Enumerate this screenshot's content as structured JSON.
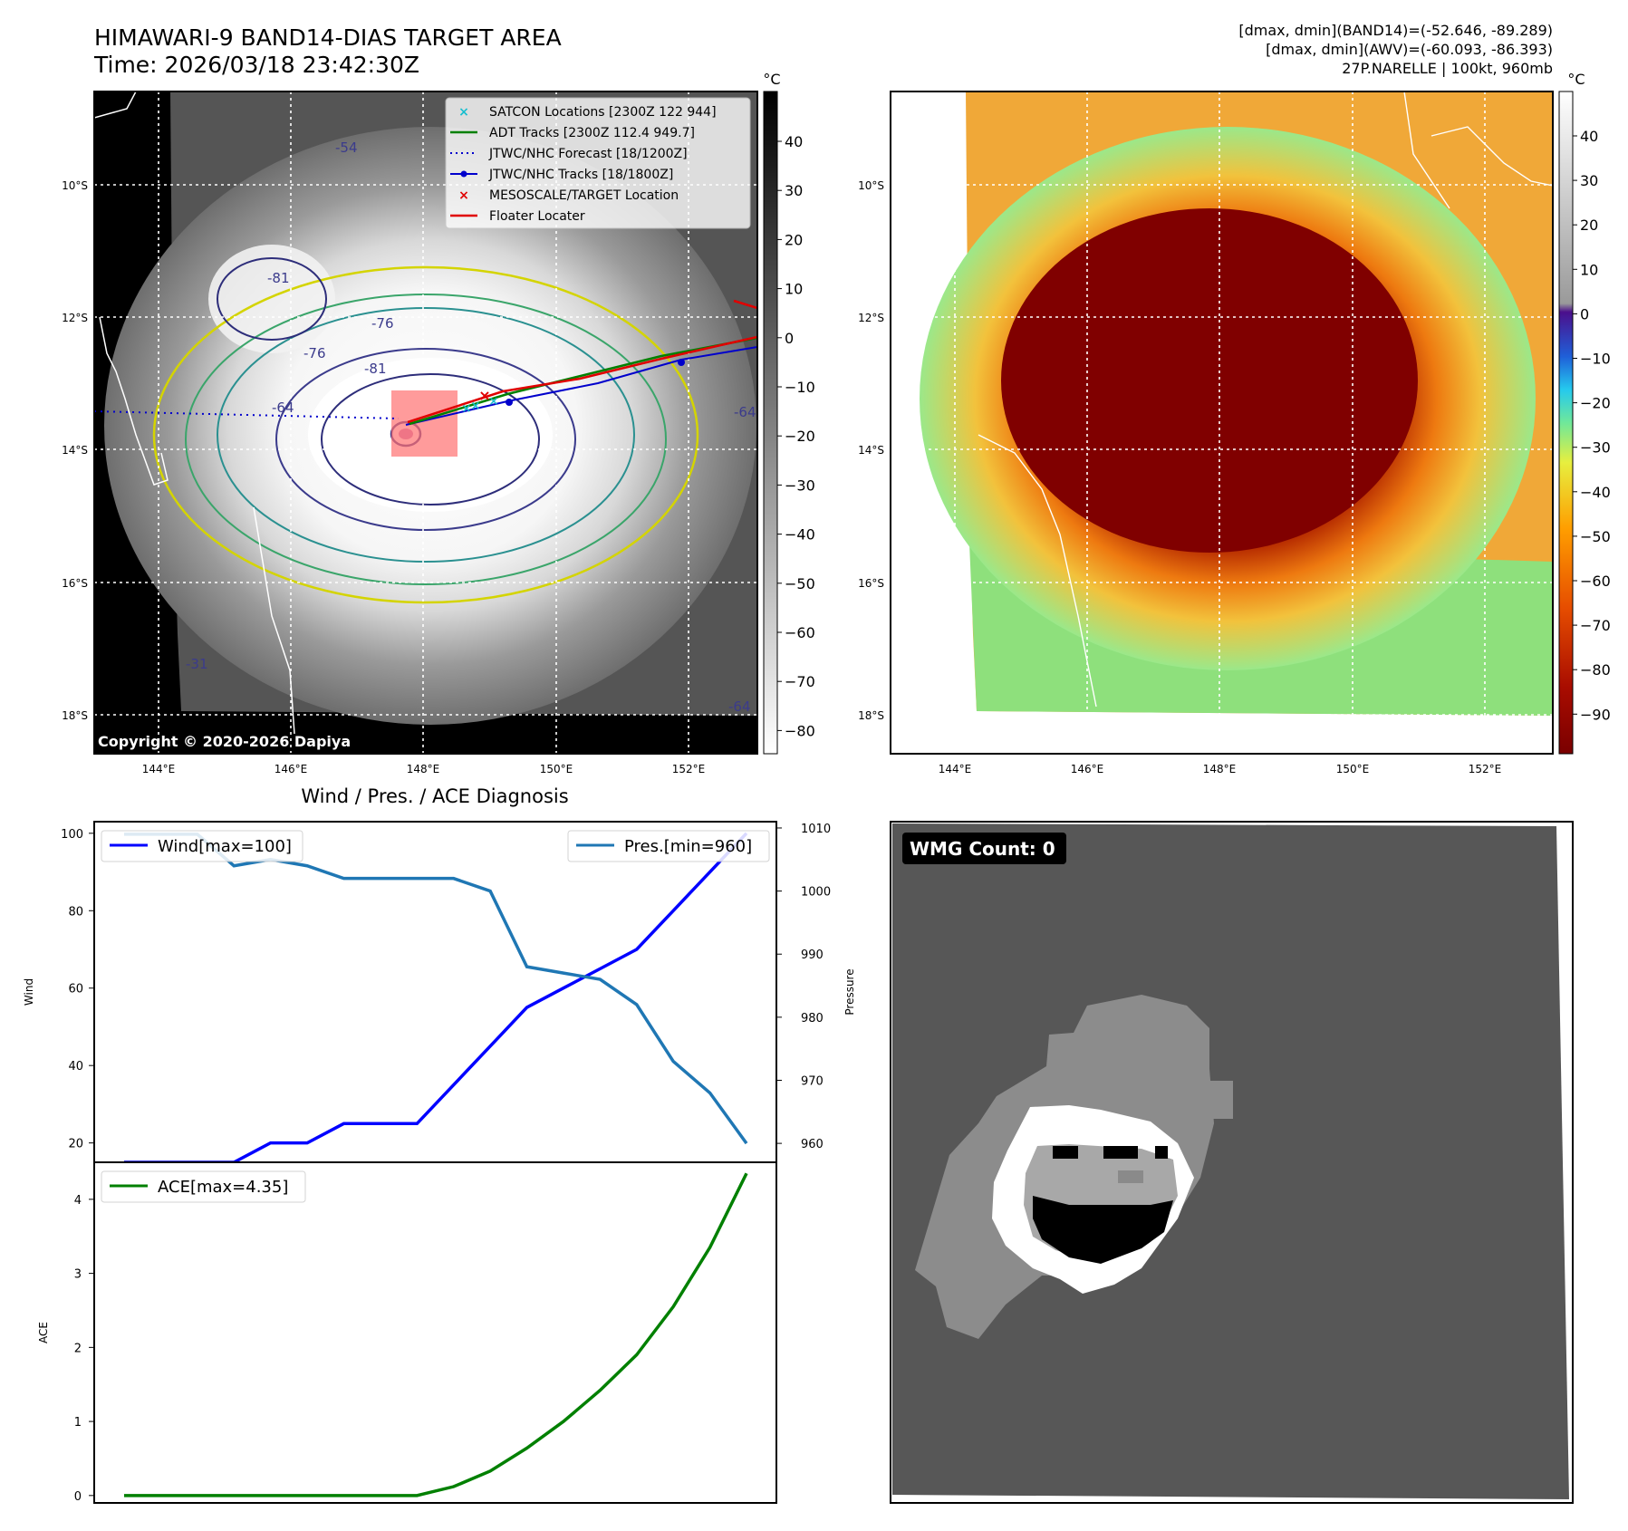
{
  "header": {
    "title_line1": "HIMAWARI-9 BAND14-DIAS TARGET AREA",
    "title_line2": "Time: 2026/03/18 23:42:30Z",
    "info_line1": "[dmax, dmin](BAND14)=(-52.646, -89.289)",
    "info_line2": "[dmax, dmin](AWV)=(-60.093, -86.393)",
    "info_line3": "27P.NARELLE | 100kt, 960mb"
  },
  "map_panel": {
    "lat_labels": [
      "10°S",
      "12°S",
      "14°S",
      "16°S",
      "18°S"
    ],
    "lon_labels": [
      "144°E",
      "146°E",
      "148°E",
      "150°E",
      "152°E"
    ],
    "copyright": "Copyright © 2020-2026 Dapiya",
    "contour_labels": [
      "-81",
      "-76",
      "-76",
      "-81",
      "-64",
      "-54",
      "-64",
      "-31",
      "-64"
    ],
    "legend": [
      {
        "label": "SATCON Locations [2300Z 122 944]",
        "color": "#17becf",
        "marker": "x"
      },
      {
        "label": "ADT Tracks [2300Z 112.4 949.7]",
        "color": "#008000",
        "marker": "line"
      },
      {
        "label": "JTWC/NHC Forecast [18/1200Z]",
        "color": "#0000cc",
        "marker": "dotted"
      },
      {
        "label": "JTWC/NHC Tracks [18/1800Z]",
        "color": "#0000cc",
        "marker": "line-dot"
      },
      {
        "label": "MESOSCALE/TARGET Location",
        "color": "#e00000",
        "marker": "x"
      },
      {
        "label": "Floater Locater",
        "color": "#e00000",
        "marker": "line"
      }
    ]
  },
  "colorbar_gray": {
    "unit": "°C",
    "ticks": [
      "40",
      "30",
      "20",
      "10",
      "0",
      "−10",
      "−20",
      "−30",
      "−40",
      "−50",
      "−60",
      "−70",
      "−80"
    ]
  },
  "colorbar_color": {
    "unit": "°C",
    "ticks": [
      "40",
      "30",
      "20",
      "10",
      "0",
      "−10",
      "−20",
      "−30",
      "−40",
      "−50",
      "−60",
      "−70",
      "−80",
      "−90"
    ]
  },
  "wmg_panel": {
    "badge": "WMG Count: 0"
  },
  "chart_data": [
    {
      "type": "line",
      "title": "Wind / Pres. / ACE Diagnosis",
      "x": [
        0,
        1,
        2,
        3,
        4,
        5,
        6,
        7,
        8,
        9,
        10,
        11,
        12,
        13,
        14,
        15,
        16,
        17
      ],
      "ylabel": "Wind",
      "ylabel_right": "Pressure",
      "ylim": [
        15,
        103
      ],
      "ylim_right": [
        957,
        1011
      ],
      "yticks": [
        20,
        40,
        60,
        80,
        100
      ],
      "yticks_right": [
        960,
        970,
        980,
        990,
        1000,
        1010
      ],
      "series": [
        {
          "name": "Wind[max=100]",
          "axis": "left",
          "color": "#0000ff",
          "values": [
            15,
            15,
            15,
            15,
            20,
            20,
            25,
            25,
            25,
            35,
            45,
            55,
            60,
            65,
            70,
            80,
            90,
            100
          ]
        },
        {
          "name": "Pres.[min=960]",
          "axis": "right",
          "color": "#1f77b4",
          "values": [
            1009,
            1009,
            1009,
            1004,
            1005,
            1004,
            1002,
            1002,
            1002,
            1002,
            1000,
            988,
            987,
            986,
            982,
            973,
            968,
            960
          ]
        }
      ],
      "grid": false,
      "legend": [
        "upper-left",
        "upper-right"
      ]
    },
    {
      "type": "line",
      "x": [
        0,
        1,
        2,
        3,
        4,
        5,
        6,
        7,
        8,
        9,
        10,
        11,
        12,
        13,
        14,
        15,
        16,
        17
      ],
      "ylabel": "ACE",
      "ylim": [
        -0.1,
        4.5
      ],
      "yticks": [
        0,
        1,
        2,
        3,
        4
      ],
      "series": [
        {
          "name": "ACE[max=4.35]",
          "color": "#008000",
          "values": [
            0,
            0,
            0,
            0,
            0,
            0,
            0,
            0,
            0,
            0.12,
            0.33,
            0.64,
            1.0,
            1.42,
            1.9,
            2.55,
            3.35,
            4.35
          ]
        }
      ],
      "grid": false,
      "legend": "upper-left"
    }
  ]
}
